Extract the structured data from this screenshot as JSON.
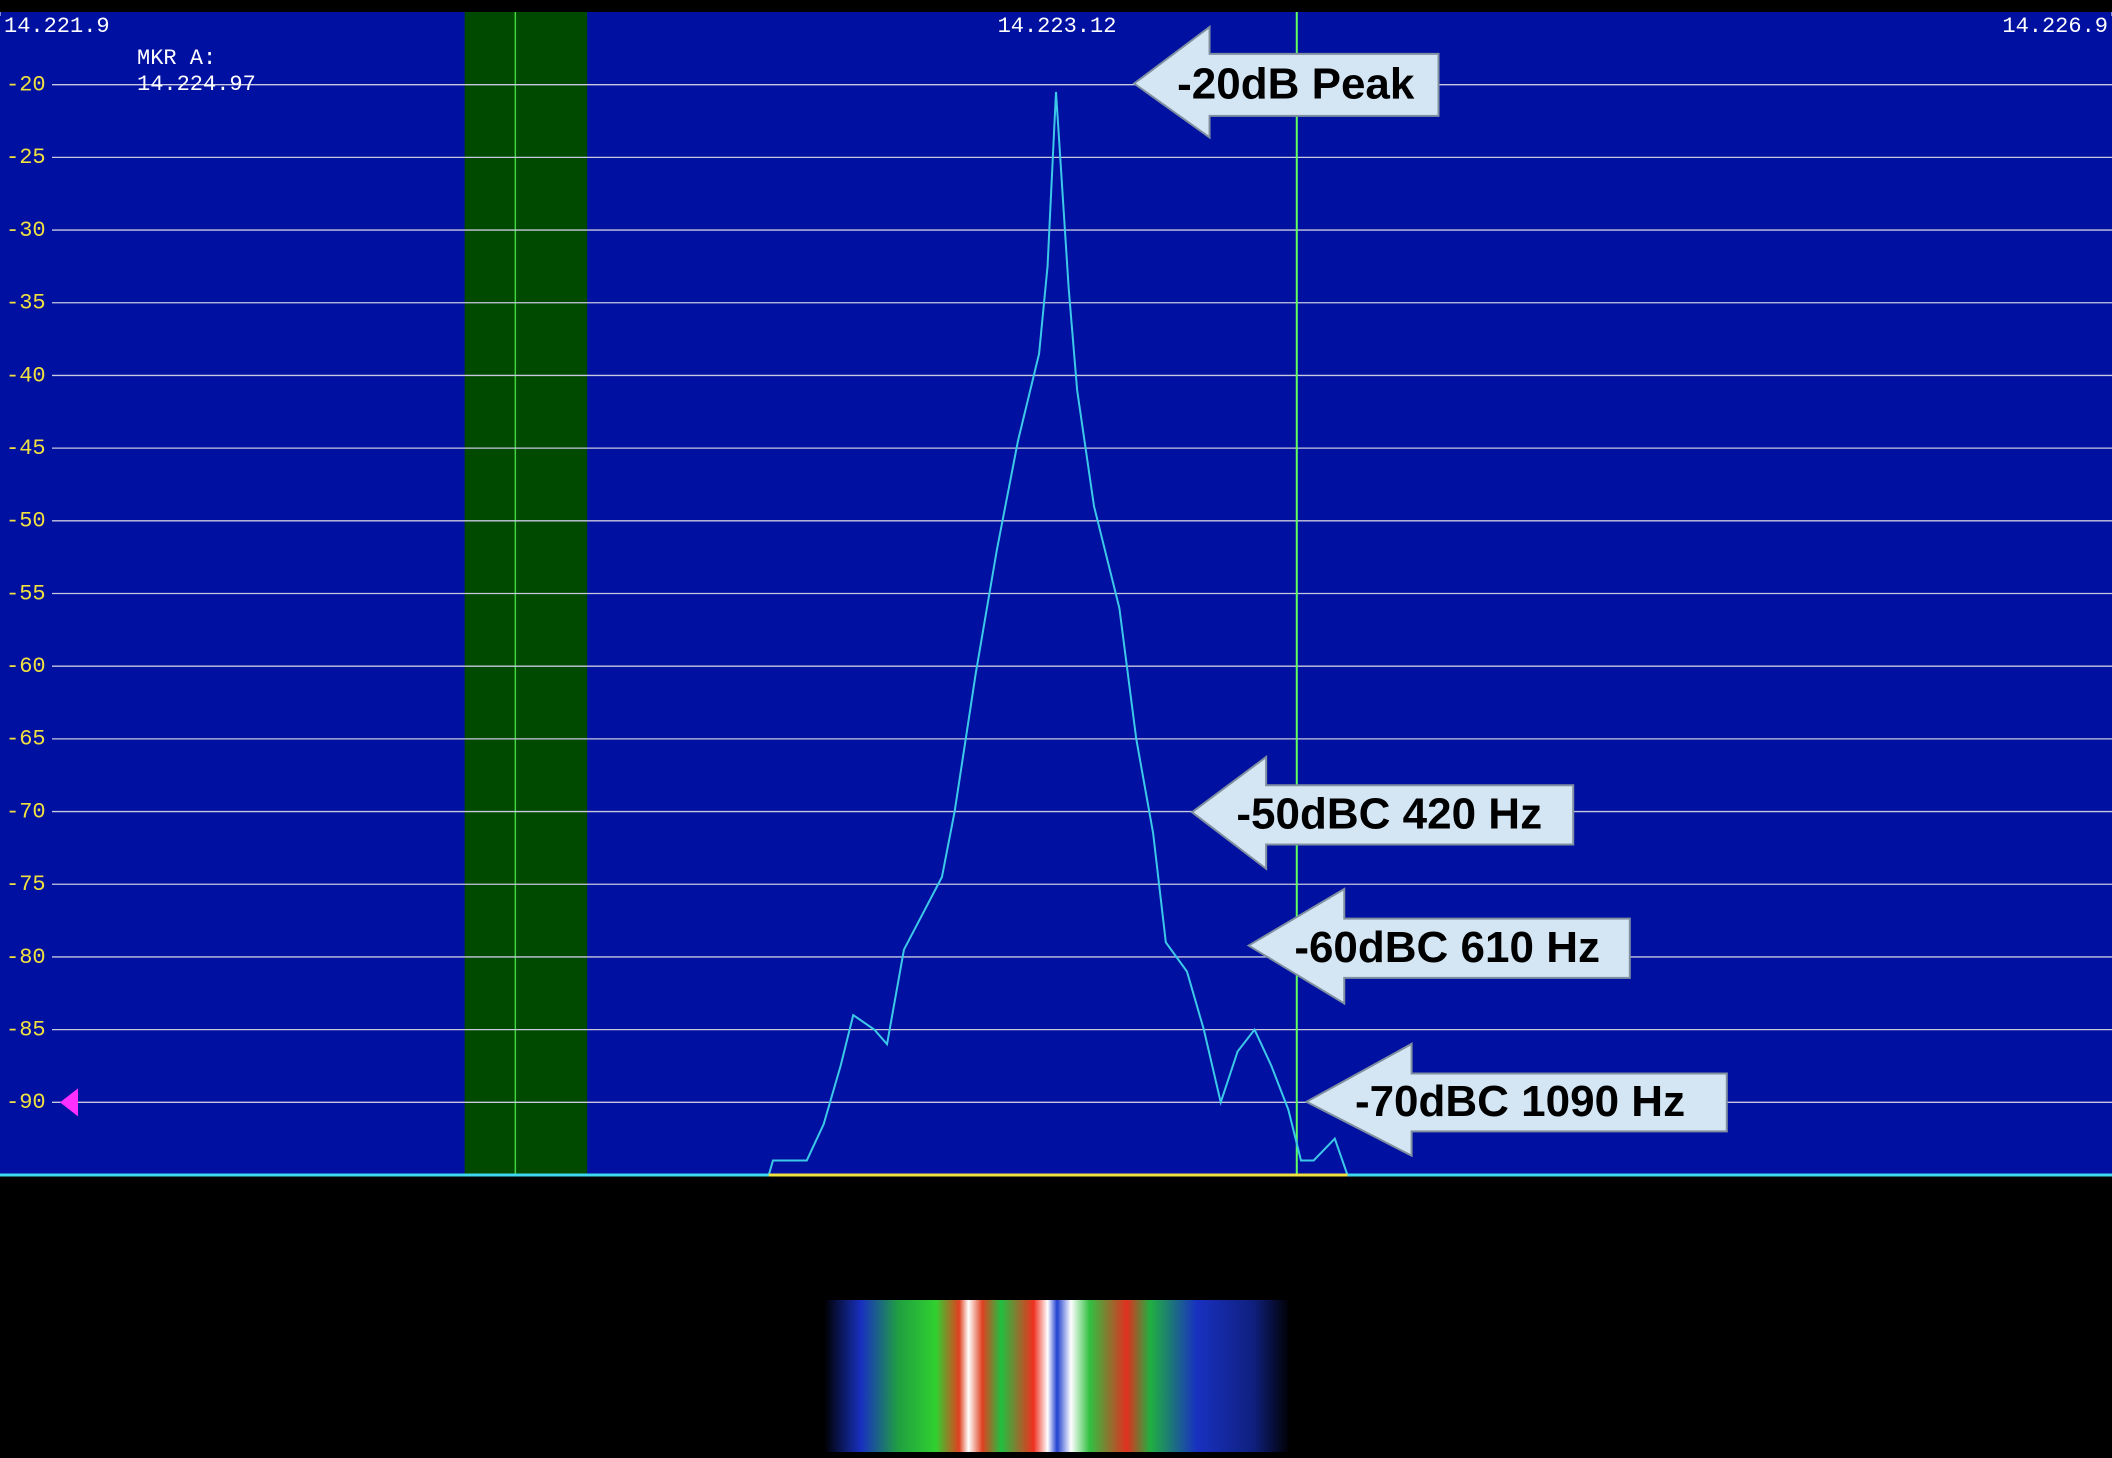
{
  "chart_data": {
    "type": "line",
    "xlim": [
      14221.9,
      14226.9
    ],
    "ylim": [
      -95,
      -15
    ],
    "xticks": [
      {
        "value": 14221.9,
        "label": "14.221.9"
      },
      {
        "value": 14226.9,
        "label": "14.226.9"
      }
    ],
    "yticks": [
      -20,
      -25,
      -30,
      -35,
      -40,
      -45,
      -50,
      -55,
      -60,
      -65,
      -70,
      -75,
      -80,
      -85,
      -90
    ],
    "grid": true,
    "band": {
      "start": 14223.0,
      "end": 14223.29,
      "center": 14223.12,
      "label": "14.223.12"
    },
    "marker": {
      "name": "MKR A:",
      "value": 14224.97,
      "label": "14.224.97"
    },
    "x": [
      14223.72,
      14223.73,
      14223.81,
      14223.85,
      14223.89,
      14223.92,
      14223.97,
      14224.0,
      14224.04,
      14224.13,
      14224.16,
      14224.21,
      14224.26,
      14224.31,
      14224.36,
      14224.38,
      14224.4,
      14224.43,
      14224.45,
      14224.49,
      14224.55,
      14224.59,
      14224.63,
      14224.66,
      14224.71,
      14224.75,
      14224.79,
      14224.83,
      14224.87,
      14224.91,
      14224.95,
      14224.98,
      14225.01,
      14225.06,
      14225.09
    ],
    "series": [
      {
        "color": "#3cc8e8",
        "values": [
          -95,
          -94,
          -94,
          -91.5,
          -87.5,
          -84,
          -85,
          -86,
          -79.5,
          -74.5,
          -70,
          -60.5,
          -52,
          -44.5,
          -38.5,
          -32.5,
          -20.5,
          -34,
          -41,
          -49,
          -56,
          -65,
          -71.5,
          -79,
          -81,
          -85,
          -90,
          -86.5,
          -85,
          -87.5,
          -90.5,
          -94,
          -94,
          -92.5,
          -95
        ]
      }
    ],
    "annotations": [
      "-20dB Peak",
      "-50dBC 420 Hz",
      "-60dBC 610 Hz",
      "-70dBC 1090 Hz"
    ]
  }
}
